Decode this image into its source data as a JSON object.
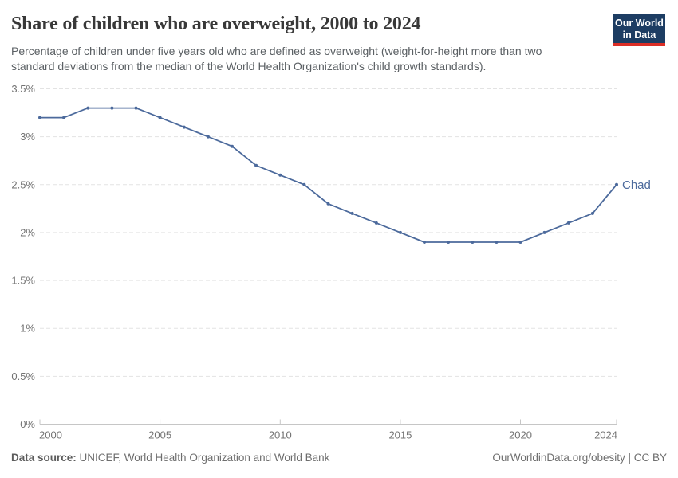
{
  "header": {
    "title": "Share of children who are overweight, 2000 to 2024",
    "subtitle": "Percentage of children under five years old who are defined as overweight (weight-for-height more than two\nstandard deviations from the median of the World Health Organization's child growth standards)."
  },
  "logo": {
    "line1": "Our World",
    "line2": "in Data",
    "bg_color": "#1d3d63",
    "accent_color": "#dc2e26"
  },
  "chart_data": {
    "type": "line",
    "title": "Share of children who are overweight, 2000 to 2024",
    "x": [
      2000,
      2001,
      2002,
      2003,
      2004,
      2005,
      2006,
      2007,
      2008,
      2009,
      2010,
      2011,
      2012,
      2013,
      2014,
      2015,
      2016,
      2017,
      2018,
      2019,
      2020,
      2021,
      2022,
      2023,
      2024
    ],
    "series": [
      {
        "name": "Chad",
        "color": "#4c6a9c",
        "values": [
          3.2,
          3.2,
          3.3,
          3.3,
          3.3,
          3.2,
          3.1,
          3.0,
          2.9,
          2.7,
          2.6,
          2.5,
          2.3,
          2.2,
          2.1,
          2.0,
          1.9,
          1.9,
          1.9,
          1.9,
          1.9,
          2.0,
          2.1,
          2.2,
          2.5
        ]
      }
    ],
    "xlabel": "",
    "ylabel": "",
    "xlim": [
      2000,
      2024
    ],
    "ylim": [
      0,
      3.5
    ],
    "xticks": [
      2000,
      2005,
      2010,
      2015,
      2020,
      2024
    ],
    "xtick_labels": [
      "2000",
      "2005",
      "2010",
      "2015",
      "2020",
      "2024"
    ],
    "yticks": [
      0,
      0.5,
      1,
      1.5,
      2,
      2.5,
      3,
      3.5
    ],
    "ytick_labels": [
      "0%",
      "0.5%",
      "1%",
      "1.5%",
      "2%",
      "2.5%",
      "3%",
      "3.5%"
    ],
    "grid": "horizontal-dashed",
    "legend_position": "end-of-line-label",
    "end_label": "Chad"
  },
  "footer": {
    "source_label": "Data source:",
    "source_text": " UNICEF, World Health Organization and World Bank",
    "attribution": "OurWorldinData.org/obesity | CC BY"
  },
  "colors": {
    "line": "#4c6a9c",
    "axis": "#c6c6c6",
    "grid": "#e3e3e3",
    "tick_label": "#737373",
    "title": "#383838",
    "subtitle": "#5b6064"
  }
}
